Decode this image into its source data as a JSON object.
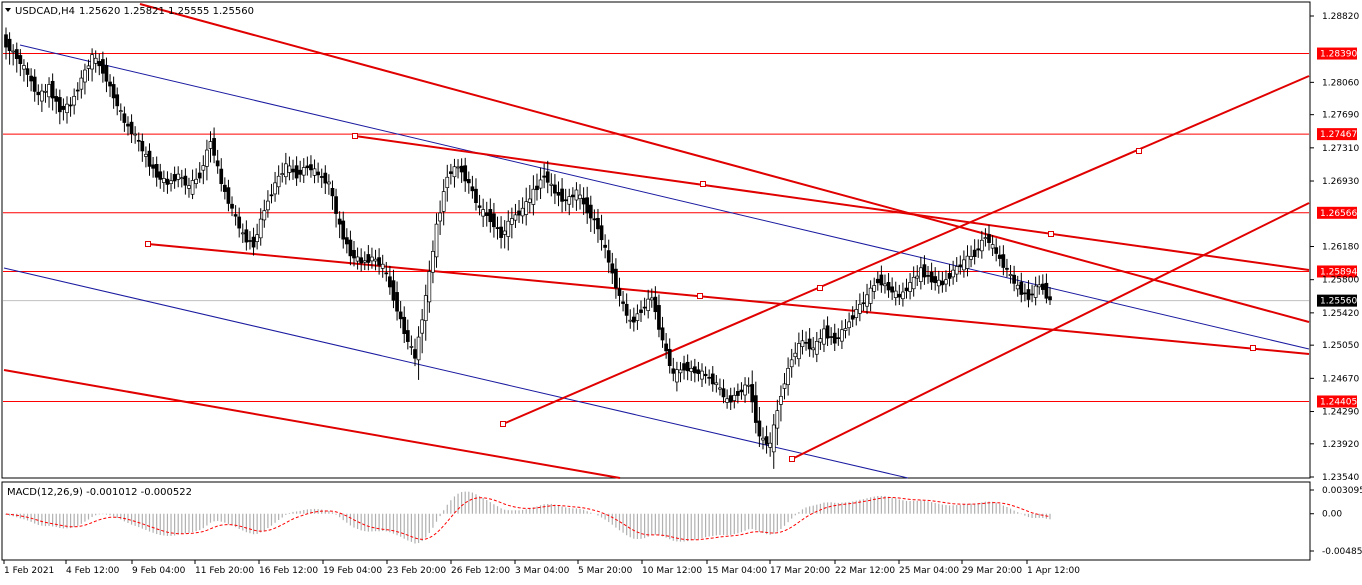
{
  "main_header": {
    "symbol": "USDCAD,H4",
    "ohlc": "1.25620 1.25821 1.25555 1.25560"
  },
  "macd_header": {
    "label": "MACD(12,26,9) -0.001012 -0.000522"
  },
  "colors": {
    "candle": "#000000",
    "hline": "#ff0000",
    "trend": "#e00000",
    "channel": "#1a1aa0",
    "macd_hist": "#b0b0b0",
    "macd_signal": "#ff0000"
  },
  "chart_data": [
    {
      "type": "candlestick",
      "title": "USDCAD,H4",
      "ylim": [
        1.2354,
        1.2882
      ],
      "y_ticks": [
        "1.28820",
        "1.28060",
        "1.27690",
        "1.27310",
        "1.26930",
        "1.26180",
        "1.25800",
        "1.25420",
        "1.25050",
        "1.24670",
        "1.24290",
        "1.23920",
        "1.23540"
      ],
      "x_ticks": [
        "1 Feb 2021",
        "4 Feb 12:00",
        "9 Feb 04:00",
        "11 Feb 20:00",
        "16 Feb 12:00",
        "19 Feb 04:00",
        "23 Feb 20:00",
        "26 Feb 12:00",
        "3 Mar 04:00",
        "5 Mar 20:00",
        "10 Mar 12:00",
        "15 Mar 04:00",
        "17 Mar 20:00",
        "22 Mar 12:00",
        "25 Mar 04:00",
        "29 Mar 20:00",
        "1 Apr 12:00"
      ],
      "current_price": "1.25560",
      "price_levels": [
        "1.28390",
        "1.27467",
        "1.26566",
        "1.25894",
        "1.24405"
      ],
      "close_path": [
        [
          1.285,
          1.2868,
          1.2815
        ],
        [
          1.2835,
          1.2852,
          1.2795
        ],
        [
          1.2815,
          1.283,
          1.278
        ],
        [
          1.279,
          1.281,
          1.2762
        ],
        [
          1.28,
          1.2818,
          1.277
        ],
        [
          1.2775,
          1.2795,
          1.274
        ],
        [
          1.278,
          1.28,
          1.275
        ],
        [
          1.281,
          1.283,
          1.2785
        ],
        [
          1.2835,
          1.285,
          1.28
        ],
        [
          1.282,
          1.284,
          1.2795
        ],
        [
          1.279,
          1.281,
          1.276
        ],
        [
          1.276,
          1.2778,
          1.2735
        ],
        [
          1.2745,
          1.2765,
          1.272
        ],
        [
          1.272,
          1.274,
          1.269
        ],
        [
          1.27,
          1.272,
          1.2675
        ],
        [
          1.269,
          1.271,
          1.2665
        ],
        [
          1.27,
          1.272,
          1.268
        ],
        [
          1.2685,
          1.2705,
          1.266
        ],
        [
          1.27,
          1.273,
          1.269
        ],
        [
          1.274,
          1.2768,
          1.27
        ],
        [
          1.269,
          1.272,
          1.267
        ],
        [
          1.266,
          1.268,
          1.264
        ],
        [
          1.263,
          1.2655,
          1.2605
        ],
        [
          1.262,
          1.2645,
          1.2598
        ],
        [
          1.266,
          1.269,
          1.264
        ],
        [
          1.269,
          1.272,
          1.267
        ],
        [
          1.271,
          1.274,
          1.269
        ],
        [
          1.27,
          1.2725,
          1.268
        ],
        [
          1.271,
          1.2735,
          1.269
        ],
        [
          1.27,
          1.2725,
          1.268
        ],
        [
          1.269,
          1.271,
          1.266
        ],
        [
          1.264,
          1.266,
          1.26
        ],
        [
          1.261,
          1.2635,
          1.2585
        ],
        [
          1.26,
          1.2625,
          1.2578
        ],
        [
          1.2605,
          1.263,
          1.2585
        ],
        [
          1.2595,
          1.262,
          1.257
        ],
        [
          1.256,
          1.259,
          1.254
        ],
        [
          1.252,
          1.255,
          1.2495
        ],
        [
          1.249,
          1.252,
          1.247
        ],
        [
          1.256,
          1.259,
          1.25
        ],
        [
          1.264,
          1.267,
          1.261
        ],
        [
          1.27,
          1.2735,
          1.266
        ],
        [
          1.271,
          1.273,
          1.268
        ],
        [
          1.269,
          1.271,
          1.266
        ],
        [
          1.266,
          1.269,
          1.264
        ],
        [
          1.265,
          1.268,
          1.262
        ],
        [
          1.263,
          1.266,
          1.26
        ],
        [
          1.265,
          1.268,
          1.261
        ],
        [
          1.266,
          1.269,
          1.264
        ],
        [
          1.268,
          1.272,
          1.265
        ],
        [
          1.27,
          1.2735,
          1.267
        ],
        [
          1.268,
          1.271,
          1.265
        ],
        [
          1.267,
          1.27,
          1.264
        ],
        [
          1.268,
          1.27,
          1.265
        ],
        [
          1.266,
          1.269,
          1.263
        ],
        [
          1.264,
          1.2665,
          1.26
        ],
        [
          1.26,
          1.263,
          1.257
        ],
        [
          1.256,
          1.259,
          1.253
        ],
        [
          1.253,
          1.256,
          1.251
        ],
        [
          1.2545,
          1.257,
          1.252
        ],
        [
          1.256,
          1.2585,
          1.254
        ],
        [
          1.251,
          1.254,
          1.249
        ],
        [
          1.247,
          1.25,
          1.245
        ],
        [
          1.248,
          1.25,
          1.2455
        ],
        [
          1.2475,
          1.2495,
          1.245
        ],
        [
          1.247,
          1.249,
          1.245
        ],
        [
          1.246,
          1.248,
          1.244
        ],
        [
          1.244,
          1.2465,
          1.2425
        ],
        [
          1.245,
          1.247,
          1.243
        ],
        [
          1.246,
          1.248,
          1.244
        ],
        [
          1.24,
          1.244,
          1.237
        ],
        [
          1.239,
          1.242,
          1.2365
        ],
        [
          1.245,
          1.248,
          1.24
        ],
        [
          1.249,
          1.252,
          1.246
        ],
        [
          1.251,
          1.254,
          1.249
        ],
        [
          1.25,
          1.253,
          1.248
        ],
        [
          1.252,
          1.2545,
          1.25
        ],
        [
          1.251,
          1.2535,
          1.249
        ],
        [
          1.2525,
          1.255,
          1.2505
        ],
        [
          1.2545,
          1.257,
          1.2525
        ],
        [
          1.256,
          1.259,
          1.254
        ],
        [
          1.258,
          1.26,
          1.256
        ],
        [
          1.257,
          1.2595,
          1.255
        ],
        [
          1.256,
          1.2585,
          1.254
        ],
        [
          1.2575,
          1.26,
          1.2555
        ],
        [
          1.259,
          1.262,
          1.257
        ],
        [
          1.258,
          1.2605,
          1.256
        ],
        [
          1.2575,
          1.26,
          1.2555
        ],
        [
          1.259,
          1.2615,
          1.257
        ],
        [
          1.26,
          1.2625,
          1.258
        ],
        [
          1.261,
          1.264,
          1.259
        ],
        [
          1.263,
          1.2655,
          1.261
        ],
        [
          1.261,
          1.2635,
          1.259
        ],
        [
          1.259,
          1.2615,
          1.257
        ],
        [
          1.257,
          1.2595,
          1.255
        ],
        [
          1.256,
          1.2585,
          1.254
        ],
        [
          1.2575,
          1.26,
          1.2555
        ],
        [
          1.2556,
          1.2582,
          1.2545
        ]
      ]
    },
    {
      "type": "macd",
      "title": "MACD(12,26,9)",
      "values": [
        "-0.001012",
        "-0.000522"
      ],
      "y_ticks": [
        "0.003095",
        "0.00",
        "-0.004859"
      ]
    }
  ]
}
